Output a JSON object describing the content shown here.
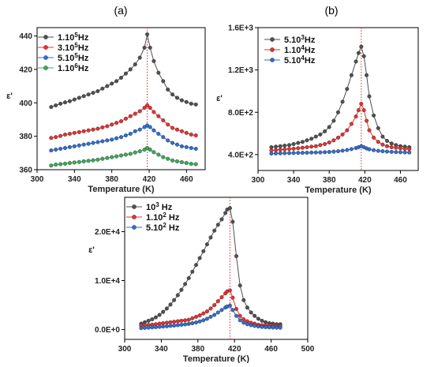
{
  "panels": [
    {
      "label": "(a)",
      "type": "line",
      "xlabel": "Temperature (K)",
      "ylabel": "ε'",
      "xlim": [
        300,
        480
      ],
      "ylim": [
        360,
        445
      ],
      "xticks": [
        "300",
        "340",
        "380",
        "420",
        "460"
      ],
      "xtick_values": [
        300,
        340,
        380,
        420,
        460
      ],
      "yticks": [
        "360",
        "380",
        "400",
        "420",
        "440"
      ],
      "ytick_values": [
        360,
        380,
        400,
        420,
        440
      ],
      "peak_x": 418,
      "legend_position": "top-left",
      "series": [
        {
          "name": "1.10^5Hz",
          "color": "#505050",
          "x": [
            315,
            320,
            325,
            330,
            335,
            340,
            345,
            350,
            355,
            360,
            365,
            370,
            375,
            380,
            385,
            390,
            395,
            400,
            405,
            410,
            415,
            418,
            421,
            425,
            430,
            435,
            440,
            445,
            450,
            455,
            460,
            465,
            470
          ],
          "y": [
            397.5,
            398.5,
            399.5,
            400.3,
            401,
            402,
            403,
            404,
            405,
            406,
            407,
            408.5,
            410,
            411.5,
            413,
            415,
            417.5,
            420,
            423,
            427,
            433,
            441,
            433,
            425,
            418,
            413,
            408,
            405,
            403,
            401.5,
            400.5,
            399.5,
            399
          ]
        },
        {
          "name": "3.10^5Hz",
          "color": "#e83030",
          "x": [
            315,
            320,
            325,
            330,
            335,
            340,
            345,
            350,
            355,
            360,
            365,
            370,
            375,
            380,
            385,
            390,
            395,
            400,
            405,
            410,
            415,
            418,
            421,
            425,
            430,
            435,
            440,
            445,
            450,
            455,
            460,
            465,
            470
          ],
          "y": [
            379,
            379.5,
            380.2,
            381,
            381.5,
            382,
            382.5,
            383,
            383.5,
            384,
            384.5,
            385.3,
            386,
            387,
            388,
            389,
            390.5,
            392,
            393.5,
            395,
            397,
            398.5,
            397,
            394.5,
            392,
            389.5,
            387,
            385,
            384,
            383,
            382,
            381,
            380.5
          ]
        },
        {
          "name": "5.10^5Hz",
          "color": "#2f6fd0",
          "x": [
            315,
            320,
            325,
            330,
            335,
            340,
            345,
            350,
            355,
            360,
            365,
            370,
            375,
            380,
            385,
            390,
            395,
            400,
            405,
            410,
            415,
            418,
            421,
            425,
            430,
            435,
            440,
            445,
            450,
            455,
            460,
            465,
            470
          ],
          "y": [
            371.5,
            372,
            372.5,
            373,
            373.5,
            374,
            374.5,
            375,
            375.5,
            376,
            376.5,
            377,
            377.5,
            378,
            378.8,
            379.5,
            380.5,
            381.5,
            383,
            384,
            385.5,
            386.5,
            385.5,
            383.5,
            381.5,
            379.5,
            377.5,
            376,
            375,
            374,
            373.5,
            373,
            372.5
          ]
        },
        {
          "name": "1.10^6Hz",
          "color": "#3aaa5a",
          "x": [
            315,
            320,
            325,
            330,
            335,
            340,
            345,
            350,
            355,
            360,
            365,
            370,
            375,
            380,
            385,
            390,
            395,
            400,
            405,
            410,
            415,
            418,
            421,
            425,
            430,
            435,
            440,
            445,
            450,
            455,
            460,
            465,
            470
          ],
          "y": [
            362.5,
            363,
            363.3,
            363.6,
            364,
            364.3,
            364.6,
            365,
            365.3,
            365.6,
            366,
            366.5,
            367,
            367.5,
            368,
            368.5,
            369,
            369.5,
            370.3,
            371,
            372,
            373,
            372,
            370.5,
            369,
            367.5,
            366.5,
            365.5,
            365,
            364.5,
            364,
            363.5,
            363.3
          ]
        }
      ]
    },
    {
      "label": "(b)",
      "type": "line",
      "xlabel": "Temperature (K)",
      "ylabel": "ε'",
      "xlim": [
        300,
        480
      ],
      "ylim": [
        250,
        1600
      ],
      "xticks": [
        "300",
        "340",
        "380",
        "420",
        "460"
      ],
      "xtick_values": [
        300,
        340,
        380,
        420,
        460
      ],
      "yticks": [
        "4.0E+2",
        "8.0E+2",
        "1.2E+3",
        "1.6E+3"
      ],
      "ytick_values": [
        400,
        800,
        1200,
        1600
      ],
      "peak_x": 416,
      "legend_position": "top-left",
      "series": [
        {
          "name": "5.10^3Hz",
          "color": "#505050",
          "x": [
            315,
            320,
            325,
            330,
            335,
            340,
            345,
            350,
            355,
            360,
            365,
            370,
            375,
            380,
            385,
            390,
            395,
            400,
            405,
            410,
            413,
            416,
            419,
            422,
            425,
            430,
            435,
            440,
            445,
            450,
            455,
            460,
            465,
            470
          ],
          "y": [
            470,
            475,
            480,
            485,
            490,
            500,
            510,
            520,
            535,
            550,
            570,
            590,
            620,
            660,
            720,
            800,
            900,
            1020,
            1150,
            1280,
            1360,
            1420,
            1330,
            1150,
            950,
            770,
            650,
            570,
            530,
            505,
            490,
            480,
            475,
            470
          ]
        },
        {
          "name": "1.10^4Hz",
          "color": "#e83030",
          "x": [
            315,
            320,
            325,
            330,
            335,
            340,
            345,
            350,
            355,
            360,
            365,
            370,
            375,
            380,
            385,
            390,
            395,
            400,
            405,
            410,
            413,
            416,
            419,
            422,
            425,
            430,
            435,
            440,
            445,
            450,
            455,
            460,
            465,
            470
          ],
          "y": [
            440,
            443,
            447,
            450,
            453,
            456,
            460,
            465,
            470,
            475,
            480,
            490,
            500,
            515,
            535,
            560,
            590,
            630,
            690,
            760,
            820,
            880,
            820,
            720,
            630,
            560,
            520,
            495,
            480,
            470,
            465,
            460,
            455,
            453
          ]
        },
        {
          "name": "5.10^4Hz",
          "color": "#2f6fd0",
          "x": [
            315,
            320,
            325,
            330,
            335,
            340,
            345,
            350,
            355,
            360,
            365,
            370,
            375,
            380,
            385,
            390,
            395,
            400,
            405,
            410,
            413,
            416,
            419,
            422,
            425,
            430,
            435,
            440,
            445,
            450,
            455,
            460,
            465,
            470
          ],
          "y": [
            410,
            411,
            412,
            413,
            414,
            415,
            416,
            417,
            418,
            419,
            420,
            421,
            423,
            425,
            428,
            432,
            437,
            443,
            452,
            462,
            470,
            480,
            470,
            458,
            450,
            442,
            436,
            432,
            429,
            426,
            424,
            422,
            421,
            420
          ]
        }
      ]
    },
    {
      "label": "",
      "type": "line",
      "xlabel": "Temperature (K)",
      "ylabel": "ε'",
      "xlim": [
        300,
        500
      ],
      "ylim": [
        -2000,
        27000
      ],
      "xticks": [
        "300",
        "340",
        "380",
        "420",
        "460",
        "500"
      ],
      "xtick_values": [
        300,
        340,
        380,
        420,
        460,
        500
      ],
      "yticks": [
        "0.0E+0",
        "1.0E+4",
        "2.0E+4"
      ],
      "ytick_values": [
        0,
        10000,
        20000
      ],
      "peak_x": 415,
      "legend_position": "top-left",
      "series": [
        {
          "name": "10^3 Hz",
          "color": "#505050",
          "x": [
            318,
            322,
            326,
            330,
            334,
            338,
            342,
            346,
            350,
            354,
            358,
            362,
            366,
            370,
            374,
            378,
            382,
            386,
            390,
            394,
            398,
            402,
            406,
            410,
            412,
            415,
            418,
            422,
            426,
            430,
            434,
            438,
            442,
            446,
            450,
            454,
            458,
            462,
            466,
            470
          ],
          "y": [
            1200,
            1500,
            1800,
            2100,
            2500,
            3000,
            3600,
            4300,
            5100,
            6000,
            7000,
            8100,
            9300,
            10500,
            11800,
            13200,
            14600,
            16000,
            17400,
            18800,
            20200,
            21400,
            22500,
            23800,
            24500,
            24800,
            22000,
            15000,
            9000,
            6000,
            4500,
            3500,
            2800,
            2200,
            1800,
            1500,
            1300,
            1200,
            1100,
            1100
          ]
        },
        {
          "name": "1.10^2 Hz",
          "color": "#e83030",
          "x": [
            318,
            322,
            326,
            330,
            334,
            338,
            342,
            346,
            350,
            354,
            358,
            362,
            366,
            370,
            374,
            378,
            382,
            386,
            390,
            394,
            398,
            402,
            406,
            410,
            412,
            415,
            418,
            422,
            426,
            430,
            434,
            438,
            442,
            446,
            450,
            454,
            458,
            462,
            466,
            470
          ],
          "y": [
            800,
            900,
            950,
            1000,
            1100,
            1200,
            1300,
            1400,
            1500,
            1600,
            1700,
            1800,
            1900,
            2000,
            2300,
            2600,
            2900,
            3300,
            3700,
            4300,
            5000,
            5800,
            6600,
            7400,
            7800,
            8000,
            6500,
            4200,
            2800,
            2100,
            1700,
            1400,
            1200,
            1000,
            900,
            850,
            800,
            750,
            700,
            700
          ]
        },
        {
          "name": "5.10^2 Hz",
          "color": "#2f6fd0",
          "x": [
            318,
            322,
            326,
            330,
            334,
            338,
            342,
            346,
            350,
            354,
            358,
            362,
            366,
            370,
            374,
            378,
            382,
            386,
            390,
            394,
            398,
            402,
            406,
            410,
            412,
            415,
            418,
            422,
            426,
            430,
            434,
            438,
            442,
            446,
            450,
            454,
            458,
            462,
            466,
            470
          ],
          "y": [
            300,
            350,
            400,
            450,
            500,
            560,
            620,
            680,
            750,
            820,
            900,
            980,
            1060,
            1150,
            1300,
            1450,
            1650,
            1900,
            2200,
            2600,
            3000,
            3500,
            4000,
            4500,
            4700,
            4900,
            4000,
            2800,
            1900,
            1400,
            1100,
            900,
            750,
            650,
            550,
            500,
            450,
            420,
            400,
            380
          ]
        }
      ]
    }
  ]
}
